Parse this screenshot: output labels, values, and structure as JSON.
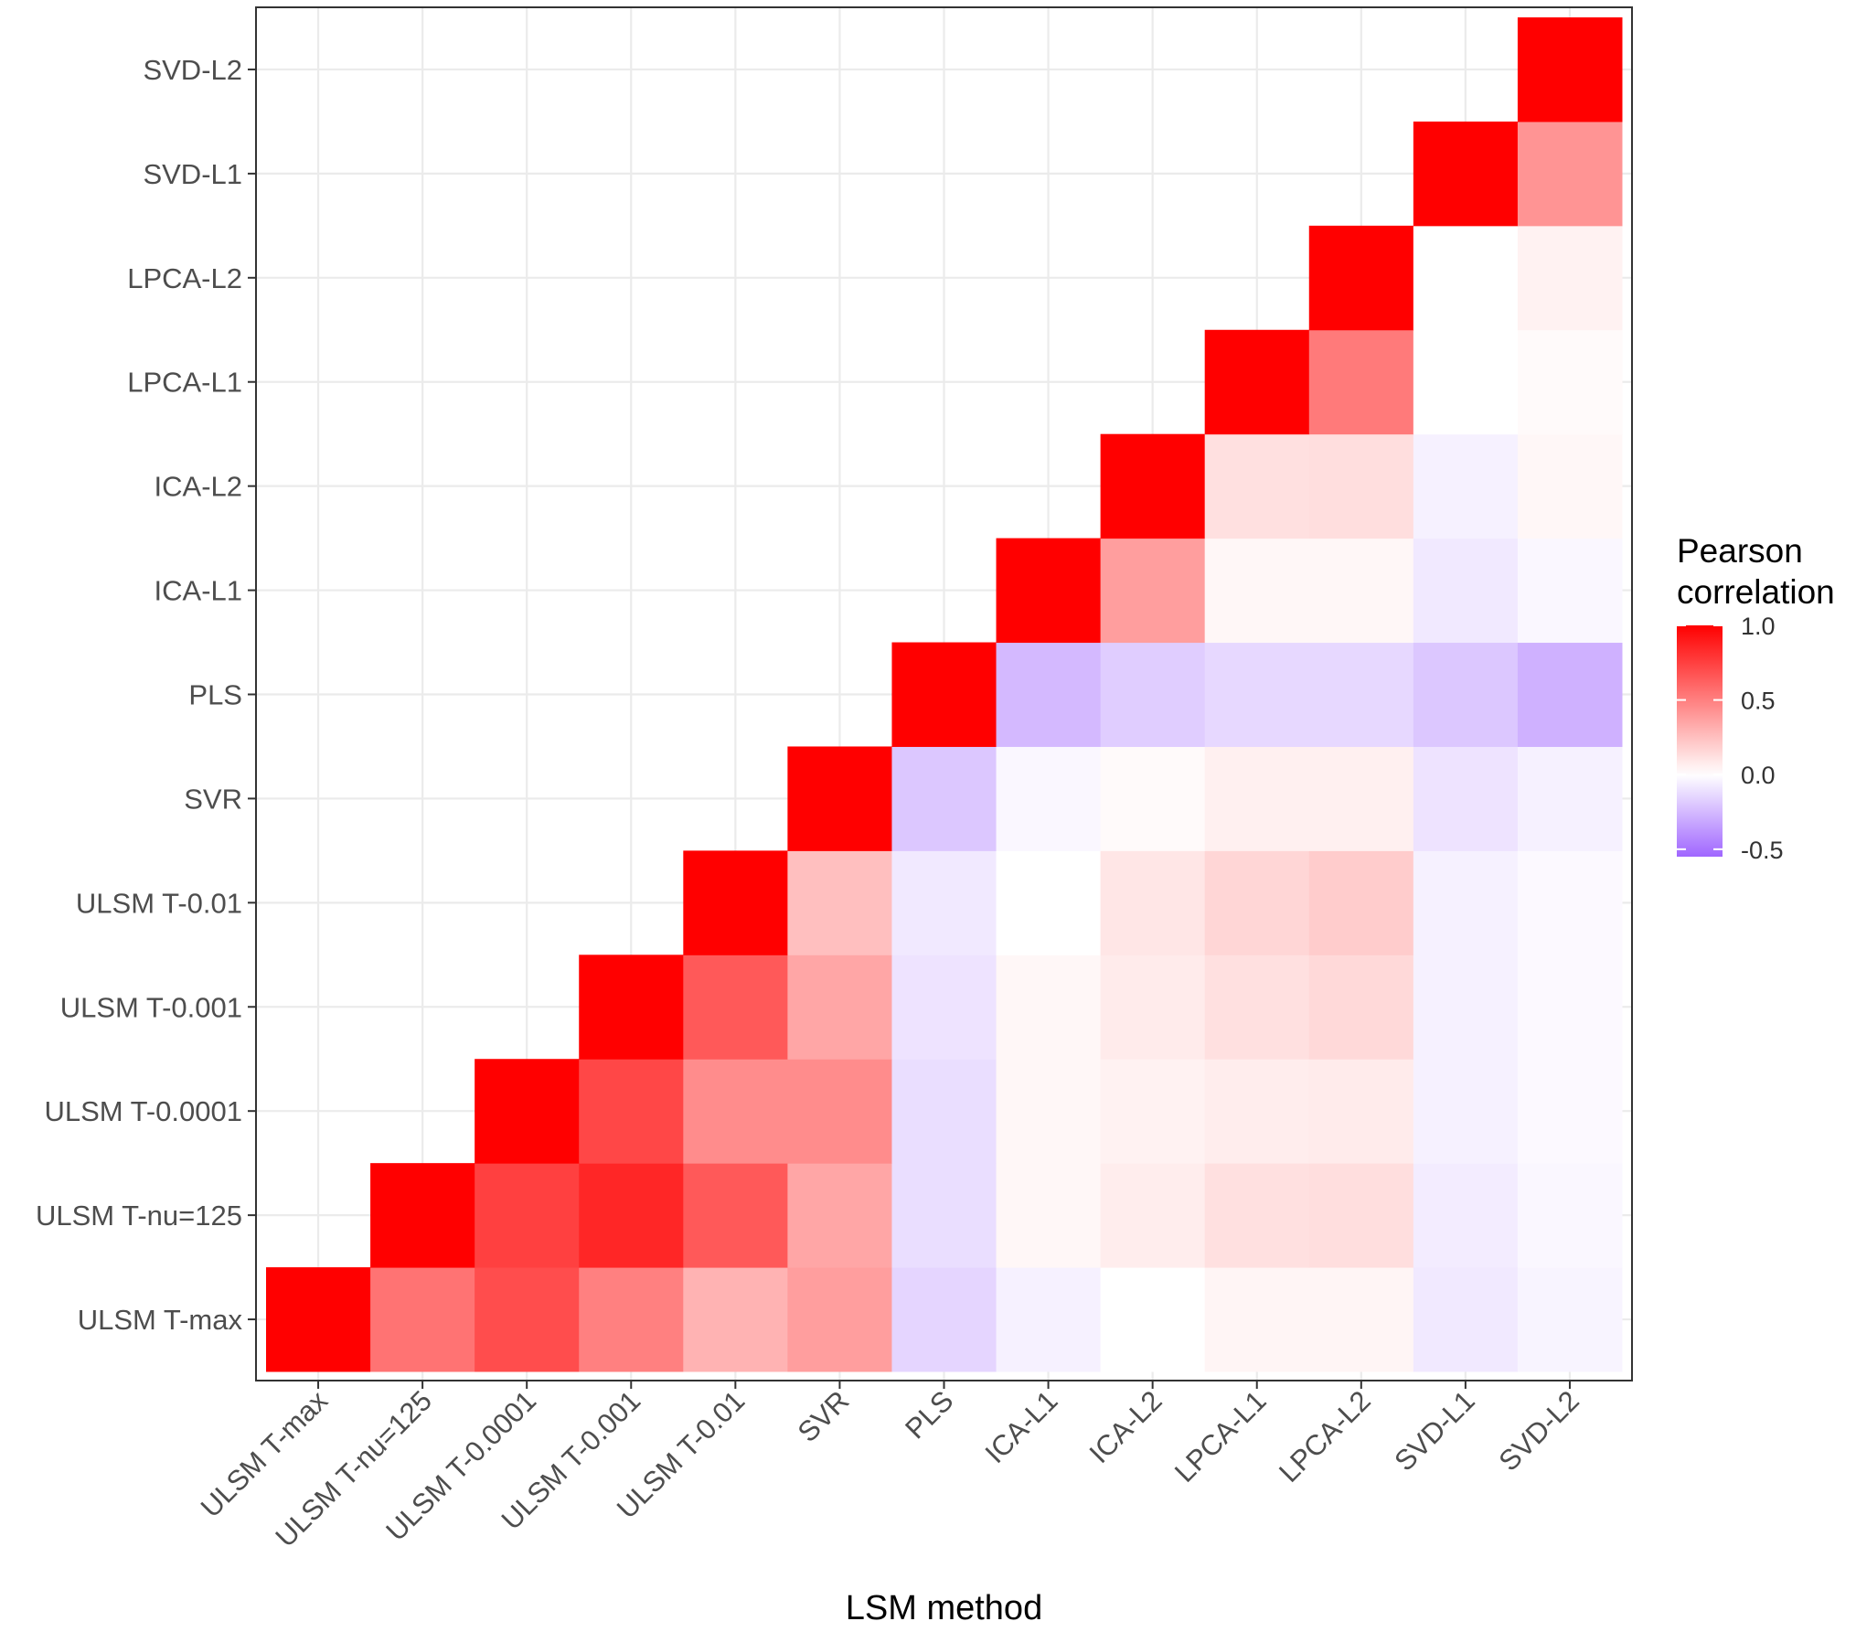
{
  "chart_data": {
    "type": "heatmap",
    "xlabel": "LSM method",
    "ylabel": "",
    "categories": [
      "ULSM T-max",
      "ULSM T-nu=125",
      "ULSM T-0.0001",
      "ULSM T-0.001",
      "ULSM T-0.01",
      "SVR",
      "PLS",
      "ICA-L1",
      "ICA-L2",
      "LPCA-L1",
      "LPCA-L2",
      "SVD-L1",
      "SVD-L2"
    ],
    "matrix": [
      [
        1.0,
        0.55,
        0.7,
        0.5,
        0.3,
        0.38,
        -0.15,
        -0.05,
        0.0,
        0.04,
        0.04,
        -0.08,
        -0.04
      ],
      [
        null,
        1.0,
        0.75,
        0.85,
        0.65,
        0.35,
        -0.12,
        0.03,
        0.07,
        0.12,
        0.13,
        -0.07,
        -0.03
      ],
      [
        null,
        null,
        1.0,
        0.72,
        0.45,
        0.45,
        -0.12,
        0.03,
        0.05,
        0.07,
        0.08,
        -0.05,
        -0.02
      ],
      [
        null,
        null,
        null,
        1.0,
        0.65,
        0.35,
        -0.1,
        0.03,
        0.08,
        0.12,
        0.15,
        -0.05,
        -0.02
      ],
      [
        null,
        null,
        null,
        null,
        1.0,
        0.25,
        -0.08,
        0.0,
        0.1,
        0.16,
        0.2,
        -0.05,
        -0.02
      ],
      [
        null,
        null,
        null,
        null,
        null,
        1.0,
        -0.2,
        -0.03,
        0.02,
        0.06,
        0.06,
        -0.1,
        -0.05
      ],
      [
        null,
        null,
        null,
        null,
        null,
        null,
        1.0,
        -0.25,
        -0.18,
        -0.14,
        -0.14,
        -0.2,
        -0.28
      ],
      [
        null,
        null,
        null,
        null,
        null,
        null,
        null,
        1.0,
        0.38,
        0.03,
        0.03,
        -0.08,
        -0.03
      ],
      [
        null,
        null,
        null,
        null,
        null,
        null,
        null,
        null,
        1.0,
        0.12,
        0.13,
        -0.05,
        0.03
      ],
      [
        null,
        null,
        null,
        null,
        null,
        null,
        null,
        null,
        null,
        1.0,
        0.52,
        0.0,
        0.02
      ],
      [
        null,
        null,
        null,
        null,
        null,
        null,
        null,
        null,
        null,
        null,
        1.0,
        0.0,
        0.05
      ],
      [
        null,
        null,
        null,
        null,
        null,
        null,
        null,
        null,
        null,
        null,
        null,
        1.0,
        0.42
      ],
      [
        null,
        null,
        null,
        null,
        null,
        null,
        null,
        null,
        null,
        null,
        null,
        null,
        1.0
      ]
    ],
    "legend": {
      "title": [
        "Pearson",
        "correlation"
      ],
      "ticks": [
        1.0,
        0.5,
        0.0,
        -0.5
      ],
      "tick_labels": [
        "1.0",
        "0.5",
        "0.0",
        "-0.5"
      ],
      "range": [
        -0.55,
        1.0
      ],
      "placement": "right"
    },
    "colors": {
      "high": "#ff0000",
      "mid": "#ffffff",
      "low": "#a066ff",
      "grid": "#ebebeb",
      "panel_border": "#333333"
    },
    "grid": true
  }
}
